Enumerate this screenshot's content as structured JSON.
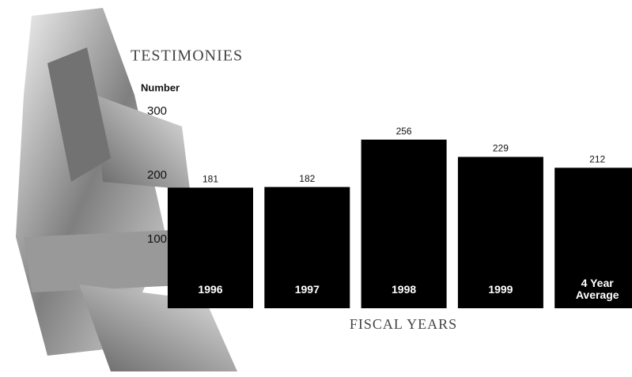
{
  "chart_data": {
    "type": "bar",
    "title": "TESTIMONIES",
    "y_label": "Number",
    "x_label": "FISCAL YEARS",
    "categories": [
      "1996",
      "1997",
      "1998",
      "1999",
      "4 Year Average"
    ],
    "values": [
      181,
      182,
      256,
      229,
      212
    ],
    "color": "#000000",
    "ylim": [
      0,
      300
    ],
    "yticks": [
      100,
      200,
      300
    ],
    "grid": false
  }
}
